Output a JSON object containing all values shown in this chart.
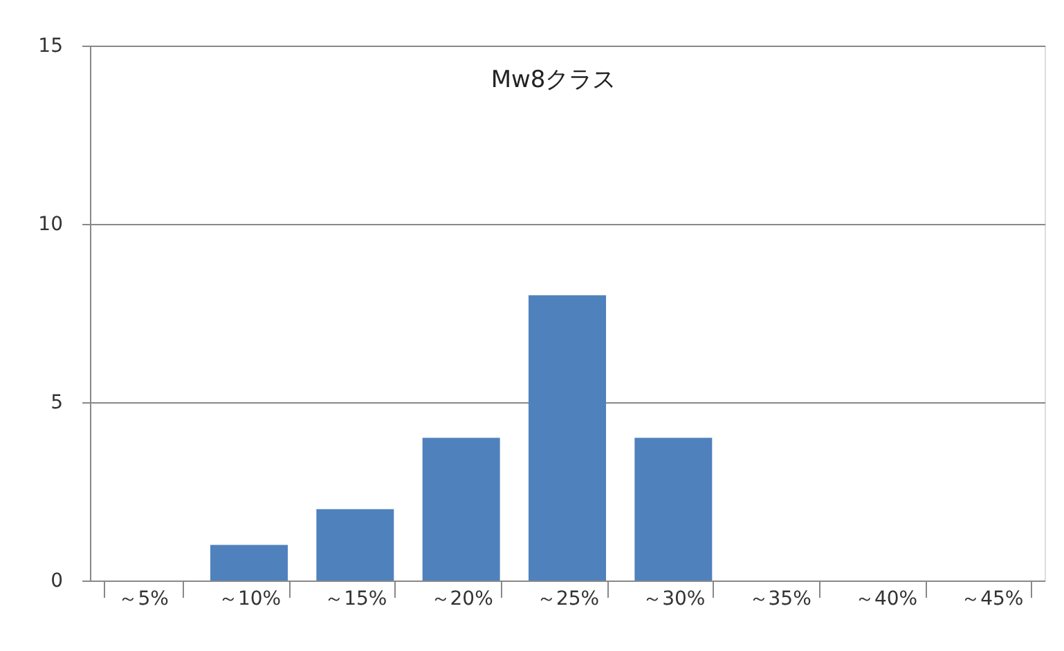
{
  "chart_data": {
    "type": "bar",
    "title": "Mw8クラス",
    "categories": [
      "～5%",
      "～10%",
      "～15%",
      "～20%",
      "～25%",
      "～30%",
      "～35%",
      "～40%",
      "～45%"
    ],
    "values": [
      0,
      1,
      2,
      4,
      8,
      4,
      0,
      0,
      0
    ],
    "color": "#4f81bd",
    "ylim": [
      0,
      15
    ],
    "yticks": [
      0,
      5,
      10,
      15
    ],
    "grid": "y"
  }
}
